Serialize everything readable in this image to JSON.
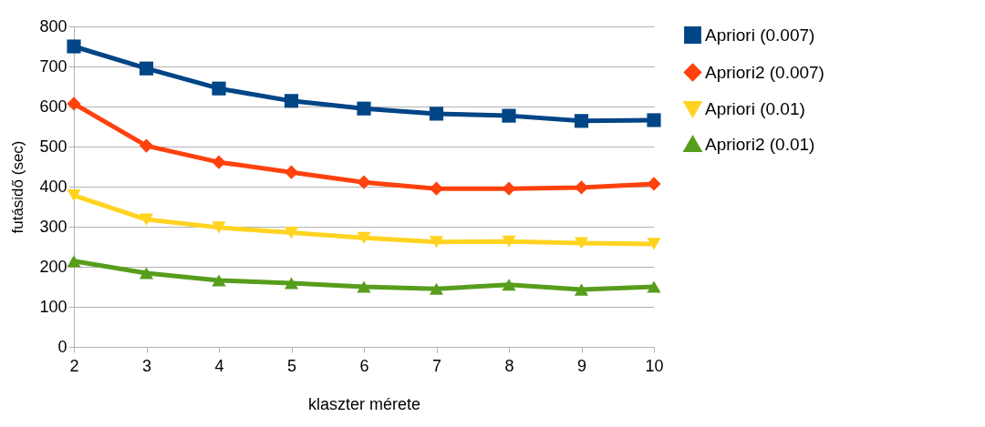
{
  "chart_data": {
    "type": "line",
    "xlabel": "klaszter mérete",
    "ylabel": "futásidő (sec)",
    "x": [
      2,
      3,
      4,
      5,
      6,
      7,
      8,
      9,
      10
    ],
    "xlim": [
      2,
      10
    ],
    "xticks": [
      2,
      3,
      4,
      5,
      6,
      7,
      8,
      9,
      10
    ],
    "ylim": [
      0,
      800
    ],
    "yticks": [
      0,
      100,
      200,
      300,
      400,
      500,
      600,
      700,
      800
    ],
    "grid": "y",
    "legend": "right",
    "line_style": "solid",
    "series": [
      {
        "name": "Apriori (0.007)",
        "color": "#004586",
        "marker": "square",
        "values": [
          750,
          695,
          645,
          614,
          595,
          582,
          577,
          564,
          566
        ]
      },
      {
        "name": "Apriori2 (0.007)",
        "color": "#ff420e",
        "marker": "diamond",
        "values": [
          607,
          502,
          461,
          436,
          411,
          395,
          395,
          398,
          407
        ]
      },
      {
        "name": "Apriori (0.01)",
        "color": "#ffd320",
        "marker": "triangle-down",
        "values": [
          378,
          318,
          298,
          285,
          272,
          262,
          263,
          259,
          257
        ]
      },
      {
        "name": "Apriori2 (0.01)",
        "color": "#579d1c",
        "marker": "triangle-up",
        "values": [
          214,
          184,
          166,
          159,
          150,
          145,
          155,
          143,
          150
        ]
      }
    ]
  }
}
